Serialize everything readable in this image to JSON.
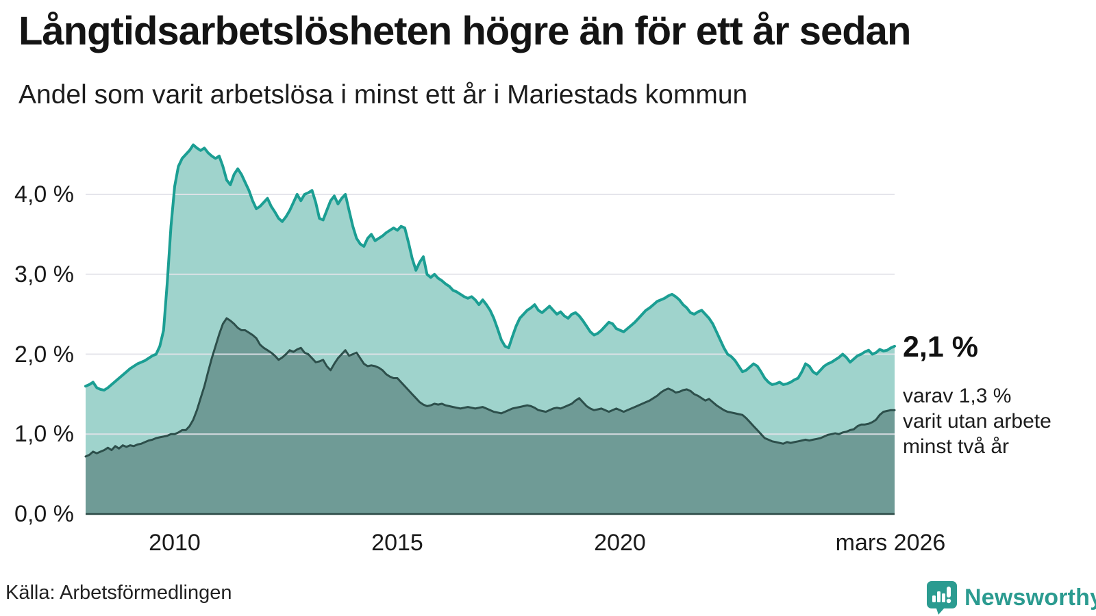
{
  "header": {
    "title": "Långtidsarbetslösheten högre än för ett år sedan",
    "subtitle": "Andel som varit arbetslösa i minst ett år i Mariestads kommun"
  },
  "chart_data": {
    "type": "area",
    "title": "Långtidsarbetslösheten högre än för ett år sedan",
    "subtitle": "Andel som varit arbetslösa i minst ett år i Mariestads kommun",
    "unit": "%",
    "x_start_label": "januari 2008",
    "x_end_label": "mars 2026",
    "x_tick_labels": [
      "2010",
      "2015",
      "2020",
      "mars 2026"
    ],
    "x_tick_years": [
      2010,
      2015,
      2020,
      2026.17
    ],
    "y_ticks": [
      "0,0 %",
      "1,0 %",
      "2,0 %",
      "3,0 %",
      "4,0 %"
    ],
    "y_tick_values": [
      0,
      1,
      2,
      3,
      4
    ],
    "ylim": [
      0,
      4.7
    ],
    "grid": true,
    "legend_position": "none",
    "series": [
      {
        "name": "Andel som varit arbetslösa minst ett år",
        "line_color": "#1b9e93",
        "fill_color": "#9fd3cc",
        "end_value": "2,1 %",
        "values": [
          1.6,
          1.62,
          1.65,
          1.58,
          1.56,
          1.55,
          1.58,
          1.62,
          1.66,
          1.7,
          1.74,
          1.78,
          1.82,
          1.85,
          1.88,
          1.9,
          1.92,
          1.95,
          1.98,
          2.0,
          2.1,
          2.3,
          2.9,
          3.6,
          4.1,
          4.35,
          4.45,
          4.5,
          4.55,
          4.62,
          4.58,
          4.55,
          4.58,
          4.52,
          4.48,
          4.45,
          4.48,
          4.35,
          4.18,
          4.12,
          4.25,
          4.32,
          4.25,
          4.15,
          4.05,
          3.92,
          3.82,
          3.85,
          3.9,
          3.95,
          3.85,
          3.78,
          3.7,
          3.66,
          3.72,
          3.8,
          3.9,
          4.0,
          3.92,
          4.0,
          4.02,
          4.05,
          3.9,
          3.7,
          3.68,
          3.8,
          3.92,
          3.98,
          3.88,
          3.95,
          4.0,
          3.8,
          3.6,
          3.45,
          3.38,
          3.35,
          3.45,
          3.5,
          3.42,
          3.45,
          3.48,
          3.52,
          3.55,
          3.58,
          3.55,
          3.6,
          3.58,
          3.4,
          3.2,
          3.05,
          3.15,
          3.22,
          3.0,
          2.96,
          3.0,
          2.95,
          2.92,
          2.88,
          2.85,
          2.8,
          2.78,
          2.75,
          2.72,
          2.7,
          2.72,
          2.68,
          2.62,
          2.68,
          2.62,
          2.55,
          2.45,
          2.32,
          2.18,
          2.1,
          2.08,
          2.22,
          2.35,
          2.45,
          2.5,
          2.55,
          2.58,
          2.62,
          2.55,
          2.52,
          2.56,
          2.6,
          2.55,
          2.5,
          2.53,
          2.48,
          2.45,
          2.5,
          2.52,
          2.48,
          2.42,
          2.35,
          2.28,
          2.24,
          2.26,
          2.3,
          2.35,
          2.4,
          2.38,
          2.32,
          2.3,
          2.28,
          2.32,
          2.36,
          2.4,
          2.45,
          2.5,
          2.55,
          2.58,
          2.62,
          2.66,
          2.68,
          2.7,
          2.73,
          2.75,
          2.72,
          2.68,
          2.62,
          2.58,
          2.52,
          2.5,
          2.53,
          2.55,
          2.5,
          2.45,
          2.38,
          2.28,
          2.18,
          2.08,
          2.0,
          1.97,
          1.92,
          1.85,
          1.78,
          1.8,
          1.84,
          1.88,
          1.85,
          1.78,
          1.7,
          1.65,
          1.62,
          1.63,
          1.65,
          1.62,
          1.63,
          1.65,
          1.68,
          1.7,
          1.78,
          1.88,
          1.85,
          1.78,
          1.75,
          1.8,
          1.85,
          1.88,
          1.9,
          1.93,
          1.96,
          2.0,
          1.96,
          1.9,
          1.94,
          1.98,
          2.0,
          2.03,
          2.05,
          2.0,
          2.02,
          2.06,
          2.04,
          2.05,
          2.08,
          2.1
        ]
      },
      {
        "name": "Andel som varit utan arbete minst två år",
        "line_color": "#2d4f4b",
        "fill_color": "#6f9b96",
        "end_value": "1,3 %",
        "values": [
          0.72,
          0.74,
          0.78,
          0.76,
          0.78,
          0.8,
          0.83,
          0.8,
          0.85,
          0.82,
          0.86,
          0.84,
          0.86,
          0.85,
          0.87,
          0.88,
          0.9,
          0.92,
          0.93,
          0.95,
          0.96,
          0.97,
          0.98,
          1.0,
          1.0,
          1.02,
          1.05,
          1.05,
          1.1,
          1.18,
          1.3,
          1.45,
          1.6,
          1.78,
          1.95,
          2.1,
          2.25,
          2.38,
          2.45,
          2.42,
          2.38,
          2.33,
          2.3,
          2.3,
          2.27,
          2.24,
          2.2,
          2.12,
          2.08,
          2.05,
          2.02,
          1.98,
          1.93,
          1.96,
          2.0,
          2.05,
          2.03,
          2.06,
          2.08,
          2.02,
          2.0,
          1.95,
          1.9,
          1.91,
          1.93,
          1.85,
          1.8,
          1.88,
          1.95,
          2.0,
          2.05,
          1.98,
          2.0,
          2.02,
          1.95,
          1.88,
          1.85,
          1.86,
          1.85,
          1.83,
          1.8,
          1.75,
          1.72,
          1.7,
          1.7,
          1.65,
          1.6,
          1.55,
          1.5,
          1.45,
          1.4,
          1.37,
          1.35,
          1.36,
          1.38,
          1.37,
          1.38,
          1.36,
          1.35,
          1.34,
          1.33,
          1.32,
          1.33,
          1.34,
          1.33,
          1.32,
          1.33,
          1.34,
          1.32,
          1.3,
          1.28,
          1.27,
          1.26,
          1.28,
          1.3,
          1.32,
          1.33,
          1.34,
          1.35,
          1.36,
          1.35,
          1.33,
          1.3,
          1.29,
          1.28,
          1.3,
          1.32,
          1.33,
          1.32,
          1.34,
          1.36,
          1.38,
          1.42,
          1.45,
          1.4,
          1.35,
          1.32,
          1.3,
          1.31,
          1.32,
          1.3,
          1.28,
          1.3,
          1.32,
          1.3,
          1.28,
          1.3,
          1.32,
          1.34,
          1.36,
          1.38,
          1.4,
          1.42,
          1.45,
          1.48,
          1.52,
          1.55,
          1.57,
          1.55,
          1.52,
          1.53,
          1.55,
          1.56,
          1.54,
          1.5,
          1.48,
          1.45,
          1.42,
          1.44,
          1.4,
          1.36,
          1.33,
          1.3,
          1.28,
          1.27,
          1.26,
          1.25,
          1.24,
          1.2,
          1.15,
          1.1,
          1.05,
          1.0,
          0.95,
          0.93,
          0.91,
          0.9,
          0.89,
          0.88,
          0.9,
          0.89,
          0.9,
          0.91,
          0.92,
          0.93,
          0.92,
          0.93,
          0.94,
          0.95,
          0.97,
          0.99,
          1.0,
          1.01,
          1.0,
          1.02,
          1.03,
          1.05,
          1.06,
          1.1,
          1.12,
          1.12,
          1.13,
          1.15,
          1.18,
          1.24,
          1.28,
          1.29,
          1.3,
          1.3
        ]
      }
    ],
    "annotations": {
      "end_value_label": "2,1 %",
      "sub_label_lines": [
        "varav 1,3 %",
        "varit utan arbete",
        "minst två år"
      ]
    }
  },
  "footer": {
    "source": "Källa: Arbetsförmedlingen",
    "brand": "Newsworthy"
  },
  "colors": {
    "line_total": "#1b9e93",
    "fill_total": "#9fd3cc",
    "line_two_years": "#2d4f4b",
    "fill_two_years": "#6f9b96",
    "brand_teal": "#2b9b90"
  }
}
